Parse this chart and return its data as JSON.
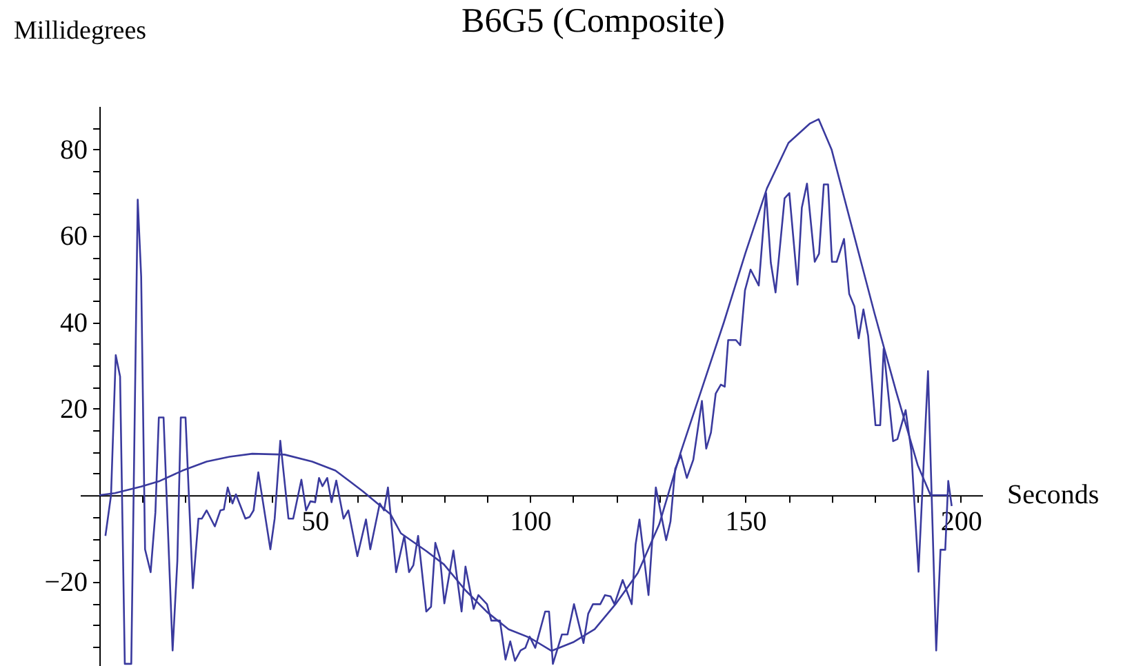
{
  "chart_data": {
    "type": "line",
    "title": "B6G5 (Composite)",
    "xlabel": "Seconds",
    "ylabel": "Millidegrees",
    "xlim": [
      -4.5,
      205
    ],
    "ylim": [
      -39.5,
      90
    ],
    "xticks": [
      {
        "value": 10,
        "label": null
      },
      {
        "value": 20,
        "label": null
      },
      {
        "value": 30,
        "label": null
      },
      {
        "value": 40,
        "label": null
      },
      50,
      {
        "value": 60,
        "label": null
      },
      {
        "value": 70,
        "label": null
      },
      {
        "value": 80,
        "label": null
      },
      {
        "value": 90,
        "label": null
      },
      100,
      {
        "value": 110,
        "label": null
      },
      {
        "value": 120,
        "label": null
      },
      {
        "value": 130,
        "label": null
      },
      {
        "value": 140,
        "label": null
      },
      150,
      {
        "value": 160,
        "label": null
      },
      {
        "value": 170,
        "label": null
      },
      {
        "value": 180,
        "label": null
      },
      {
        "value": 190,
        "label": null
      },
      200
    ],
    "yticks": [
      {
        "value": -35,
        "label": null
      },
      {
        "value": -30,
        "label": null
      },
      {
        "value": -25,
        "label": null
      },
      {
        "value": -20,
        "label": "−20"
      },
      {
        "value": -15,
        "label": null
      },
      {
        "value": -10,
        "label": null
      },
      {
        "value": -5,
        "label": null
      },
      {
        "value": 5,
        "label": null
      },
      {
        "value": 10,
        "label": null
      },
      {
        "value": 15,
        "label": null
      },
      20,
      {
        "value": 25,
        "label": null
      },
      {
        "value": 30,
        "label": null
      },
      {
        "value": 35,
        "label": null
      },
      40,
      {
        "value": 45,
        "label": null
      },
      {
        "value": 50,
        "label": null
      },
      {
        "value": 55,
        "label": null
      },
      60,
      {
        "value": 65,
        "label": null
      },
      {
        "value": 70,
        "label": null
      },
      {
        "value": 75,
        "label": null
      },
      80,
      {
        "value": 85,
        "label": null
      }
    ],
    "grid": false,
    "marker": "none",
    "line_style": "solid",
    "series": [
      {
        "color": "#3a3a9e",
        "x": [
          1.4,
          2.7,
          3.8,
          4.8,
          5.9,
          7.4,
          8.9,
          9.7,
          10.6,
          11.9,
          13.0,
          13.8,
          14.9,
          17.0,
          18.1,
          18.9,
          20.0,
          21.7,
          23.0,
          23.8,
          24.9,
          26.8,
          28.1,
          28.9,
          29.8,
          30.9,
          31.7,
          33.9,
          34.9,
          35.8,
          36.9,
          39.7,
          40.7,
          42.0,
          43.9,
          45.0,
          46.9,
          48.0,
          49.0,
          50.1,
          51.0,
          51.8,
          52.9,
          53.9,
          55.0,
          56.7,
          57.8,
          59.9,
          61.9,
          62.9,
          65.1,
          66.1,
          67.0,
          68.9,
          70.8,
          71.9,
          72.9,
          74.0,
          75.9,
          77.0,
          78.0,
          79.1,
          80.1,
          82.2,
          84.1,
          85.0,
          86.9,
          88.0,
          90.0,
          91.0,
          93.0,
          94.3,
          95.4,
          96.5,
          97.8,
          98.9,
          99.9,
          101.2,
          103.5,
          104.4,
          105.3,
          107.4,
          108.7,
          110.2,
          112.4,
          113.5,
          114.6,
          116.3,
          117.4,
          118.7,
          119.6,
          121.5,
          123.6,
          124.5,
          125.4,
          127.5,
          129.2,
          131.6,
          132.6,
          133.7,
          135.0,
          136.4,
          137.9,
          139.9,
          140.9,
          142.0,
          143.1,
          144.3,
          145.2,
          146.0,
          147.8,
          148.8,
          149.9,
          151.2,
          153.1,
          154.8,
          155.9,
          157.0,
          159.1,
          160.2,
          162.1,
          163.1,
          164.3,
          166.1,
          167.1,
          168.2,
          169.2,
          170.1,
          171.2,
          172.9,
          174.1,
          175.3,
          176.3,
          177.4,
          178.5,
          180.2,
          181.3,
          182.1,
          184.3,
          185.3,
          187.2,
          188.5,
          190.2,
          192.4,
          194.3,
          195.3,
          196.4,
          197.1,
          197.9
        ],
        "values": [
          -9.4,
          0,
          32.4,
          27.5,
          -39,
          -39,
          68.4,
          50.6,
          -12.5,
          -17.8,
          -4,
          18,
          18,
          -35.9,
          -15.2,
          18,
          18,
          -21.5,
          -5.4,
          -5.4,
          -3.5,
          -7.2,
          -3.5,
          -3.3,
          1.8,
          -1.9,
          0.2,
          -5.4,
          -5,
          -3.5,
          5.3,
          -12.5,
          -5.4,
          12.6,
          -5.4,
          -5.4,
          3.6,
          -3.5,
          -1.4,
          -1.6,
          4,
          2.1,
          4,
          -1.6,
          3.4,
          -5.4,
          -3.5,
          -14.1,
          -5.6,
          -12.5,
          -1.9,
          -3.5,
          1.8,
          -17.8,
          -9.4,
          -17.8,
          -16.2,
          -9.4,
          -26.9,
          -25.8,
          -11,
          -14.6,
          -25,
          -12.8,
          -26.9,
          -16.5,
          -26.3,
          -23.1,
          -25.2,
          -29,
          -29,
          -38,
          -33.8,
          -38.3,
          -35.9,
          -35.3,
          -32.7,
          -35.3,
          -26.9,
          -26.9,
          -39,
          -32.2,
          -32.2,
          -25.2,
          -34.2,
          -27.4,
          -25.2,
          -25.2,
          -23.1,
          -23.4,
          -25.2,
          -19.6,
          -25.2,
          -11.4,
          -5.6,
          -23.1,
          1.8,
          -10.4,
          -6.1,
          6.1,
          9.3,
          4,
          8.2,
          21.8,
          10.8,
          14.5,
          23.5,
          25.6,
          25.1,
          35.9,
          35.9,
          34.7,
          47.4,
          52.2,
          48.5,
          69.9,
          53.8,
          46.9,
          68.7,
          69.9,
          48.7,
          66.5,
          72.1,
          54,
          55.9,
          71.9,
          71.9,
          54,
          54,
          59.3,
          46.6,
          43.7,
          36.3,
          43,
          36.9,
          16.2,
          16.2,
          33.9,
          12.5,
          13,
          19.7,
          10.4,
          -17.7,
          28.7,
          -35.9,
          -12.6,
          -12.6,
          3.3,
          -2.5
        ]
      },
      {
        "color": "#3a3a9e",
        "x": [
          0,
          3.6,
          9.7,
          14,
          19.3,
          24.9,
          30.2,
          35.5,
          43,
          49.4,
          54.8,
          61.2,
          67.6,
          70,
          75.9,
          80,
          85,
          90,
          95,
          100,
          105,
          110,
          115,
          120,
          125,
          130,
          135,
          140,
          145,
          150,
          155,
          160,
          165,
          167,
          170,
          175,
          180,
          185,
          190,
          193,
          197
        ],
        "values": [
          0,
          0.5,
          2,
          3.3,
          5.7,
          7.8,
          8.9,
          9.6,
          9.4,
          7.8,
          5.7,
          0.9,
          -4.4,
          -8.8,
          -12.9,
          -16,
          -22,
          -27,
          -31,
          -33,
          -36,
          -34,
          -31,
          -25,
          -18,
          -6.7,
          10,
          25,
          40,
          56,
          71,
          81.5,
          86,
          87,
          80,
          61,
          42,
          24,
          7,
          0,
          0
        ]
      }
    ]
  }
}
